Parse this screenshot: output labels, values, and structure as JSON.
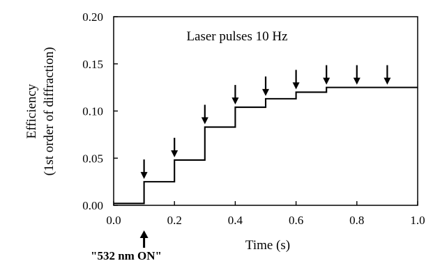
{
  "chart_data": {
    "type": "line",
    "title": "",
    "xlabel": "Time (s)",
    "ylabel_line1": "Efficiency",
    "ylabel_line2": "(1st order of diffraction)",
    "xlim": [
      0.0,
      1.0
    ],
    "ylim": [
      0.0,
      0.2
    ],
    "xticks": [
      0.0,
      0.2,
      0.4,
      0.6,
      0.8,
      1.0
    ],
    "xtick_labels": [
      "0.0",
      "0.2",
      "0.4",
      "0.6",
      "0.8",
      "1.0"
    ],
    "yticks": [
      0.0,
      0.05,
      0.1,
      0.15,
      0.2
    ],
    "ytick_labels": [
      "0.00",
      "0.05",
      "0.10",
      "0.15",
      "0.20"
    ],
    "grid": false,
    "legend": "none",
    "series": [
      {
        "x": [
          0.0,
          0.1,
          0.1,
          0.2,
          0.2,
          0.3,
          0.3,
          0.4,
          0.4,
          0.5,
          0.5,
          0.6,
          0.6,
          0.7,
          0.7,
          1.0
        ],
        "values": [
          0.002,
          0.002,
          0.025,
          0.025,
          0.048,
          0.048,
          0.083,
          0.083,
          0.104,
          0.104,
          0.113,
          0.113,
          0.12,
          0.12,
          0.125,
          0.125
        ]
      }
    ],
    "annotations": {
      "pulse_label": "Laser pulses 10 Hz",
      "on_label": "\"532 nm ON\"",
      "on_time": 0.1,
      "pulse_arrows": [
        {
          "x": 0.1,
          "y": 0.025
        },
        {
          "x": 0.2,
          "y": 0.048
        },
        {
          "x": 0.3,
          "y": 0.083
        },
        {
          "x": 0.4,
          "y": 0.104
        },
        {
          "x": 0.5,
          "y": 0.113
        },
        {
          "x": 0.6,
          "y": 0.12
        },
        {
          "x": 0.7,
          "y": 0.125
        },
        {
          "x": 0.8,
          "y": 0.125
        },
        {
          "x": 0.9,
          "y": 0.125
        }
      ]
    }
  }
}
